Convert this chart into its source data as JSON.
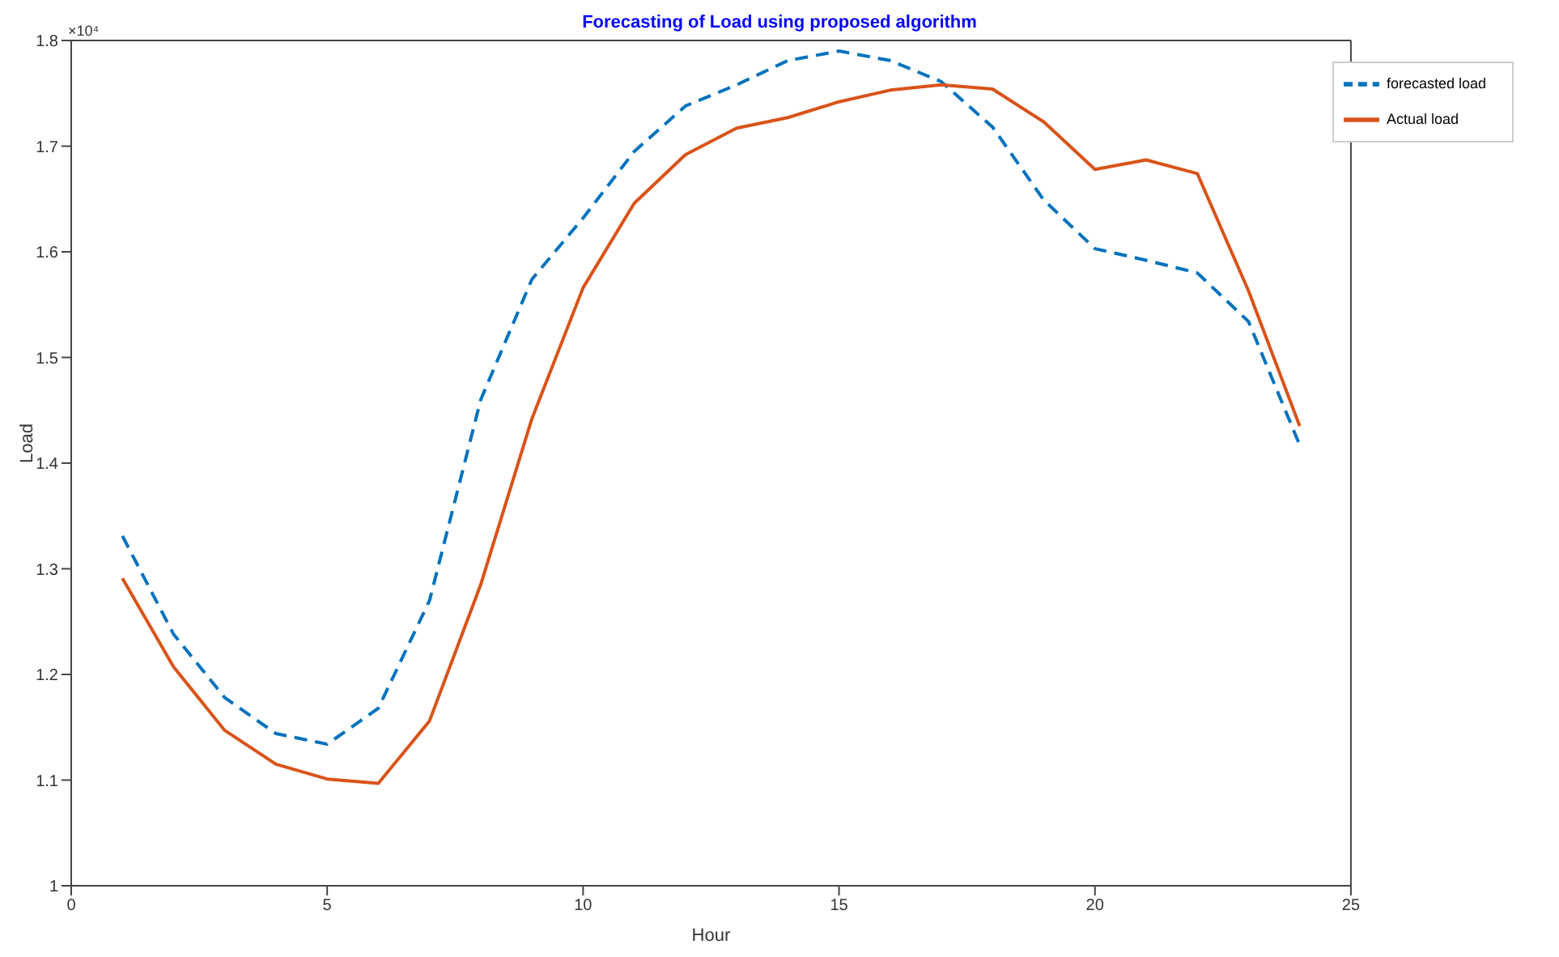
{
  "chart_data": {
    "type": "line",
    "title": "Forecasting of Load using proposed algorithm",
    "xlabel": "Hour",
    "ylabel": "Load",
    "annotations": [
      "×10⁴"
    ],
    "x": [
      1,
      2,
      3,
      4,
      5,
      6,
      7,
      8,
      9,
      10,
      11,
      12,
      13,
      14,
      15,
      16,
      17,
      18,
      19,
      20,
      21,
      22,
      23,
      24
    ],
    "series": [
      {
        "name": "forecasted load",
        "color": "#0072bd",
        "line_style": "dashed",
        "values": [
          1.331,
          1.238,
          1.178,
          1.144,
          1.134,
          1.168,
          1.27,
          1.46,
          1.574,
          1.632,
          1.695,
          1.738,
          1.758,
          1.781,
          1.79,
          1.781,
          1.761,
          1.718,
          1.649,
          1.603,
          1.592,
          1.58,
          1.534,
          1.417
        ]
      },
      {
        "name": "Actual load",
        "color": "#d95319",
        "line_style": "solid",
        "values": [
          1.291,
          1.207,
          1.147,
          1.115,
          1.101,
          1.097,
          1.156,
          1.285,
          1.442,
          1.566,
          1.646,
          1.692,
          1.717,
          1.727,
          1.742,
          1.753,
          1.758,
          1.754,
          1.723,
          1.678,
          1.687,
          1.674,
          1.563,
          1.435
        ]
      }
    ],
    "xlim": [
      0,
      25
    ],
    "xticks": [
      0,
      5,
      10,
      15,
      20,
      25
    ],
    "ylim": [
      1,
      1.8
    ],
    "yticks": [
      1,
      1.1,
      1.2,
      1.3,
      1.4,
      1.5,
      1.6,
      1.7,
      1.8
    ],
    "grid": false,
    "legend": "top right",
    "marker": "none"
  }
}
